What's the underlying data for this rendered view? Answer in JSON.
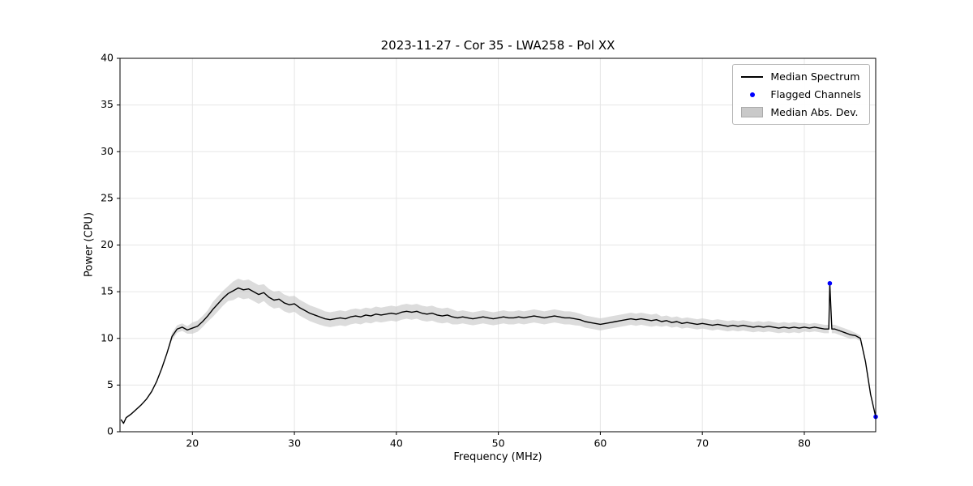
{
  "chart_data": {
    "type": "line",
    "title": "2023-11-27 - Cor 35 - LWA258 - Pol XX",
    "xlabel": "Frequency (MHz)",
    "ylabel": "Power (CPU)",
    "xlim": [
      12.9,
      87.0
    ],
    "ylim": [
      0,
      40
    ],
    "xticks": [
      20,
      30,
      40,
      50,
      60,
      70,
      80
    ],
    "yticks": [
      0,
      5,
      10,
      15,
      20,
      25,
      30,
      35,
      40
    ],
    "grid": true,
    "line_color": "#000000",
    "flagged_color": "#0000ff",
    "band_color": "#c9c9c9",
    "grid_color": "#e6e6e6",
    "legend": [
      "Median Spectrum",
      "Flagged Channels",
      "Median Abs. Dev."
    ],
    "legend_position": "upper right",
    "x": [
      13.0,
      13.25,
      13.5,
      14.0,
      14.5,
      15.0,
      15.5,
      16.0,
      16.5,
      17.0,
      17.5,
      18.0,
      18.5,
      19.0,
      19.5,
      20.0,
      20.5,
      21.0,
      21.5,
      22.0,
      22.5,
      23.0,
      23.5,
      24.0,
      24.5,
      25.0,
      25.5,
      26.0,
      26.5,
      27.0,
      27.5,
      28.0,
      28.5,
      29.0,
      29.5,
      30.0,
      30.5,
      31.0,
      31.5,
      32.0,
      32.5,
      33.0,
      33.5,
      34.0,
      34.5,
      35.0,
      35.5,
      36.0,
      36.5,
      37.0,
      37.5,
      38.0,
      38.5,
      39.0,
      39.5,
      40.0,
      40.5,
      41.0,
      41.5,
      42.0,
      42.5,
      43.0,
      43.5,
      44.0,
      44.5,
      45.0,
      45.5,
      46.0,
      46.5,
      47.0,
      47.5,
      48.0,
      48.5,
      49.0,
      49.5,
      50.0,
      50.5,
      51.0,
      51.5,
      52.0,
      52.5,
      53.0,
      53.5,
      54.0,
      54.5,
      55.0,
      55.5,
      56.0,
      56.5,
      57.0,
      57.5,
      58.0,
      58.5,
      59.0,
      59.5,
      60.0,
      60.5,
      61.0,
      61.5,
      62.0,
      62.5,
      63.0,
      63.5,
      64.0,
      64.5,
      65.0,
      65.5,
      66.0,
      66.5,
      67.0,
      67.5,
      68.0,
      68.5,
      69.0,
      69.5,
      70.0,
      70.5,
      71.0,
      71.5,
      72.0,
      72.5,
      73.0,
      73.5,
      74.0,
      74.5,
      75.0,
      75.5,
      76.0,
      76.5,
      77.0,
      77.5,
      78.0,
      78.5,
      79.0,
      79.5,
      80.0,
      80.5,
      81.0,
      81.5,
      82.0,
      82.4,
      82.5,
      82.7,
      83.0,
      83.5,
      84.0,
      84.5,
      85.0,
      85.5,
      86.0,
      86.5,
      87.0
    ],
    "median": [
      1.3,
      0.9,
      1.5,
      1.9,
      2.4,
      2.9,
      3.5,
      4.3,
      5.4,
      6.8,
      8.4,
      10.2,
      11.0,
      11.2,
      10.9,
      11.1,
      11.3,
      11.8,
      12.4,
      13.1,
      13.7,
      14.3,
      14.8,
      15.1,
      15.4,
      15.2,
      15.3,
      15.0,
      14.7,
      14.9,
      14.4,
      14.1,
      14.2,
      13.8,
      13.6,
      13.7,
      13.3,
      13.0,
      12.7,
      12.5,
      12.3,
      12.1,
      12.0,
      12.1,
      12.2,
      12.1,
      12.3,
      12.4,
      12.3,
      12.5,
      12.4,
      12.6,
      12.5,
      12.6,
      12.7,
      12.6,
      12.8,
      12.9,
      12.8,
      12.9,
      12.7,
      12.6,
      12.7,
      12.5,
      12.4,
      12.5,
      12.3,
      12.2,
      12.3,
      12.2,
      12.1,
      12.2,
      12.3,
      12.2,
      12.1,
      12.2,
      12.3,
      12.2,
      12.2,
      12.3,
      12.2,
      12.3,
      12.4,
      12.3,
      12.2,
      12.3,
      12.4,
      12.3,
      12.2,
      12.2,
      12.1,
      12.0,
      11.8,
      11.7,
      11.6,
      11.5,
      11.6,
      11.7,
      11.8,
      11.9,
      12.0,
      12.1,
      12.0,
      12.1,
      12.0,
      11.9,
      12.0,
      11.8,
      11.9,
      11.7,
      11.8,
      11.6,
      11.7,
      11.6,
      11.5,
      11.6,
      11.5,
      11.4,
      11.5,
      11.4,
      11.3,
      11.4,
      11.3,
      11.4,
      11.3,
      11.2,
      11.3,
      11.2,
      11.3,
      11.2,
      11.1,
      11.2,
      11.1,
      11.2,
      11.1,
      11.2,
      11.1,
      11.2,
      11.1,
      11.0,
      11.0,
      15.9,
      11.0,
      11.0,
      10.8,
      10.6,
      10.4,
      10.3,
      10.0,
      7.5,
      4.0,
      1.6
    ],
    "mad": [
      0.1,
      0.1,
      0.1,
      0.1,
      0.1,
      0.1,
      0.1,
      0.1,
      0.1,
      0.1,
      0.1,
      0.4,
      0.4,
      0.4,
      0.4,
      0.6,
      0.6,
      0.6,
      0.6,
      0.8,
      0.8,
      0.8,
      0.8,
      1.0,
      1.0,
      1.0,
      1.0,
      1.0,
      1.0,
      0.9,
      0.9,
      0.9,
      0.9,
      0.9,
      0.9,
      0.85,
      0.85,
      0.85,
      0.85,
      0.85,
      0.85,
      0.8,
      0.8,
      0.8,
      0.8,
      0.8,
      0.8,
      0.8,
      0.8,
      0.8,
      0.8,
      0.8,
      0.8,
      0.8,
      0.8,
      0.8,
      0.8,
      0.8,
      0.8,
      0.8,
      0.8,
      0.8,
      0.8,
      0.8,
      0.8,
      0.8,
      0.8,
      0.7,
      0.7,
      0.7,
      0.7,
      0.7,
      0.7,
      0.7,
      0.7,
      0.7,
      0.7,
      0.7,
      0.7,
      0.7,
      0.7,
      0.7,
      0.7,
      0.7,
      0.7,
      0.7,
      0.7,
      0.7,
      0.7,
      0.7,
      0.7,
      0.65,
      0.65,
      0.65,
      0.65,
      0.65,
      0.65,
      0.65,
      0.65,
      0.65,
      0.65,
      0.65,
      0.65,
      0.65,
      0.65,
      0.65,
      0.65,
      0.55,
      0.55,
      0.55,
      0.55,
      0.55,
      0.55,
      0.55,
      0.55,
      0.55,
      0.55,
      0.55,
      0.55,
      0.55,
      0.55,
      0.55,
      0.55,
      0.55,
      0.55,
      0.55,
      0.55,
      0.55,
      0.55,
      0.55,
      0.55,
      0.55,
      0.55,
      0.55,
      0.55,
      0.45,
      0.45,
      0.45,
      0.45,
      0.45,
      0.45,
      0.45,
      0.45,
      0.45,
      0.45,
      0.45,
      0.45,
      0.3,
      0.3,
      0.15,
      0.15,
      0.15
    ],
    "flagged": [
      [
        82.5,
        15.9
      ],
      [
        87.0,
        1.6
      ]
    ]
  }
}
